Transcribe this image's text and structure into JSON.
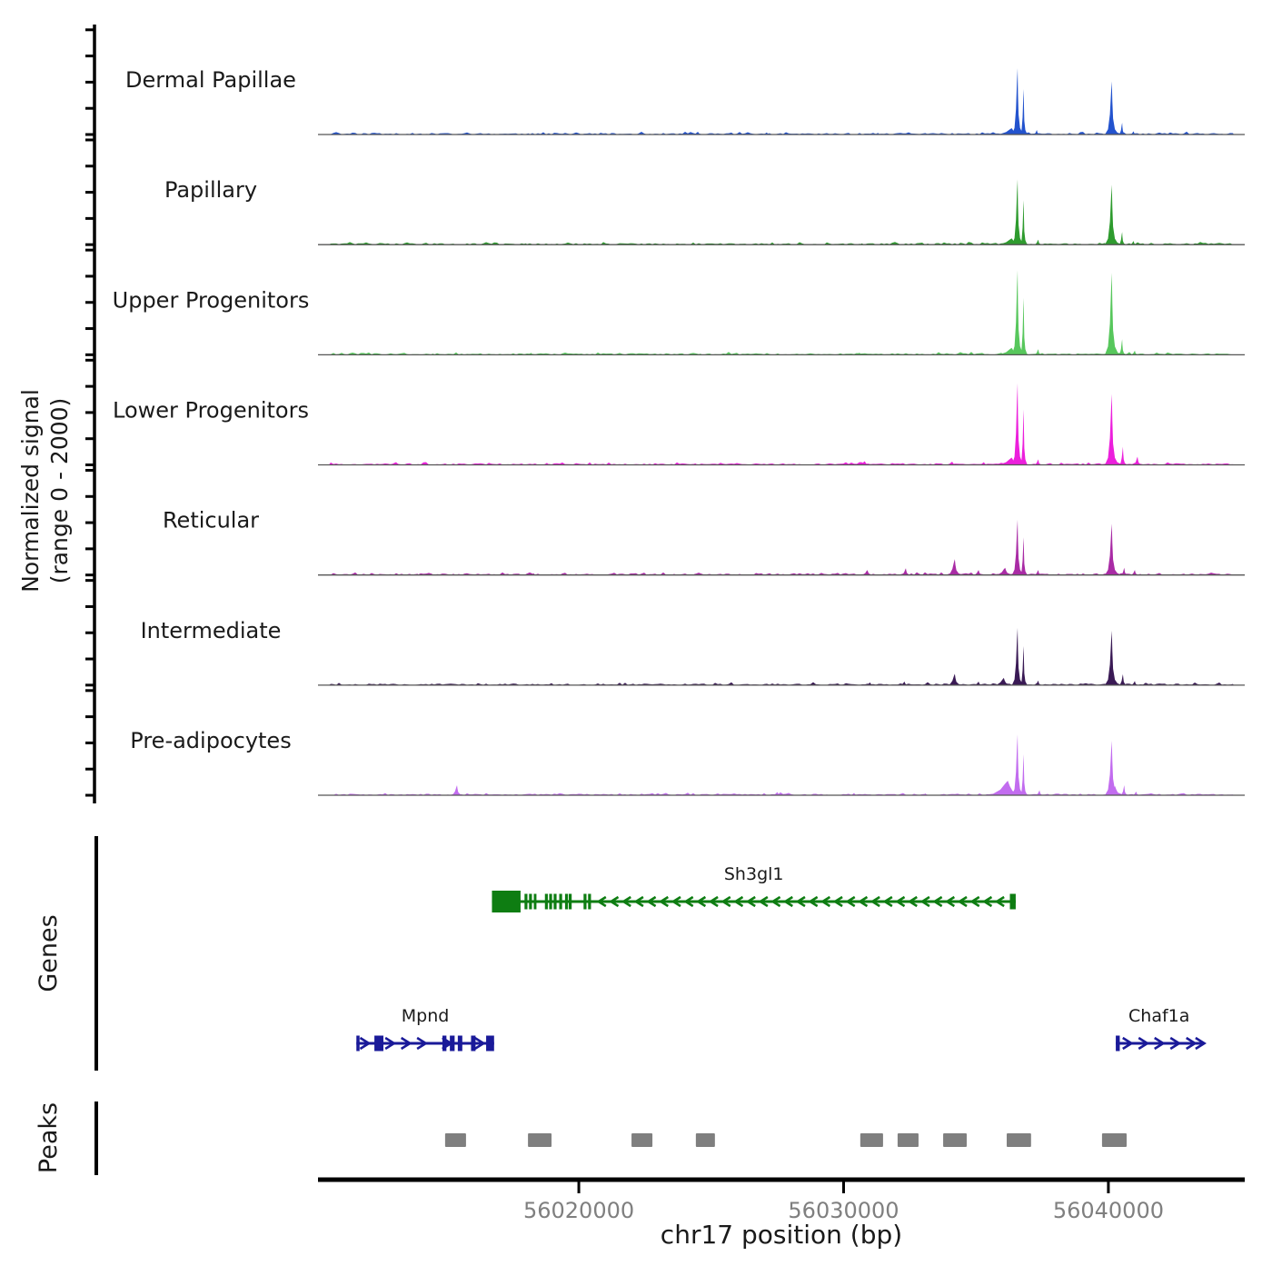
{
  "figure": {
    "ylabel_line1": "Normalized signal",
    "ylabel_line2": "(range 0 - 2000)",
    "genes_section_label": "Genes",
    "peaks_section_label": "Peaks",
    "x_axis_title": "chr17 position (bp)",
    "colors": {
      "background": "#ffffff",
      "axis": "#000000",
      "baseline": "#555555",
      "tick_label_gray": "#7f7f7f",
      "peak_box_gray": "#7f7f7f",
      "text": "#1a1a1a"
    }
  },
  "chart_data": {
    "type": "area",
    "title": "",
    "xlabel": "chr17 position (bp)",
    "ylabel": "Normalized signal (range 0 - 2000)",
    "signal_range": [
      0,
      2000
    ],
    "genome_axis": {
      "start": 56010150,
      "end": 56045150,
      "ticks": [
        {
          "bp": 56020000,
          "label": "56020000"
        },
        {
          "bp": 56030000,
          "label": "56030000"
        },
        {
          "bp": 56040000,
          "label": "56040000"
        }
      ]
    },
    "tracks": [
      {
        "name": "Dermal Papillae",
        "color": "#2353CE",
        "bumps": [
          [
            56018100,
            25,
            700
          ],
          [
            56024500,
            60,
            600
          ],
          [
            56027100,
            45,
            500
          ],
          [
            56031300,
            35,
            500
          ],
          [
            56033100,
            30,
            400
          ],
          [
            56036350,
            140,
            1500
          ],
          [
            56036570,
            1460,
            420
          ],
          [
            56036800,
            1000,
            280
          ],
          [
            56037300,
            100,
            350
          ],
          [
            56040200,
            170,
            1100
          ],
          [
            56040130,
            1170,
            520
          ],
          [
            56040520,
            260,
            300
          ],
          [
            56040950,
            70,
            400
          ]
        ]
      },
      {
        "name": "Papillary",
        "color": "#2E9B2E",
        "bumps": [
          [
            56018000,
            30,
            600
          ],
          [
            56024500,
            25,
            400
          ],
          [
            56030700,
            30,
            500
          ],
          [
            56036350,
            140,
            1500
          ],
          [
            56036570,
            1440,
            420
          ],
          [
            56036800,
            980,
            280
          ],
          [
            56037350,
            110,
            400
          ],
          [
            56040200,
            180,
            1100
          ],
          [
            56040130,
            1320,
            520
          ],
          [
            56040520,
            280,
            300
          ],
          [
            56040950,
            80,
            400
          ]
        ]
      },
      {
        "name": "Upper Progenitors",
        "color": "#57C75C",
        "bumps": [
          [
            56014500,
            25,
            500
          ],
          [
            56018200,
            40,
            600
          ],
          [
            56024600,
            25,
            400
          ],
          [
            56030600,
            45,
            600
          ],
          [
            56036350,
            150,
            1500
          ],
          [
            56036570,
            1860,
            420
          ],
          [
            56036800,
            1250,
            280
          ],
          [
            56037350,
            120,
            400
          ],
          [
            56040200,
            200,
            1100
          ],
          [
            56040130,
            1800,
            520
          ],
          [
            56040520,
            340,
            300
          ],
          [
            56041000,
            90,
            400
          ]
        ]
      },
      {
        "name": "Lower Progenitors",
        "color": "#EC1FDC",
        "bumps": [
          [
            56013100,
            60,
            1000
          ],
          [
            56018800,
            45,
            600
          ],
          [
            56024400,
            35,
            500
          ],
          [
            56030800,
            80,
            700
          ],
          [
            56034100,
            70,
            700
          ],
          [
            56035300,
            60,
            600
          ],
          [
            56036350,
            160,
            1500
          ],
          [
            56036570,
            1800,
            420
          ],
          [
            56036800,
            1220,
            280
          ],
          [
            56037350,
            120,
            400
          ],
          [
            56040200,
            220,
            1200
          ],
          [
            56040130,
            1560,
            520
          ],
          [
            56040550,
            400,
            320
          ],
          [
            56041100,
            180,
            450
          ]
        ]
      },
      {
        "name": "Reticular",
        "color": "#A92BA5",
        "bumps": [
          [
            56013900,
            30,
            500
          ],
          [
            56018300,
            35,
            500
          ],
          [
            56024400,
            30,
            400
          ],
          [
            56030900,
            110,
            600
          ],
          [
            56032350,
            150,
            450
          ],
          [
            56034200,
            350,
            650
          ],
          [
            56035100,
            110,
            500
          ],
          [
            56036100,
            160,
            900
          ],
          [
            56036570,
            1220,
            420
          ],
          [
            56036800,
            830,
            280
          ],
          [
            56037350,
            110,
            400
          ],
          [
            56040200,
            180,
            1000
          ],
          [
            56040130,
            1130,
            520
          ],
          [
            56040600,
            160,
            350
          ],
          [
            56041000,
            110,
            400
          ]
        ]
      },
      {
        "name": "Intermediate",
        "color": "#3A1A55",
        "bumps": [
          [
            56031000,
            60,
            500
          ],
          [
            56032300,
            80,
            450
          ],
          [
            56034200,
            250,
            650
          ],
          [
            56035100,
            80,
            450
          ],
          [
            56036050,
            160,
            900
          ],
          [
            56036570,
            1260,
            420
          ],
          [
            56036800,
            860,
            280
          ],
          [
            56037350,
            100,
            400
          ],
          [
            56040200,
            180,
            1000
          ],
          [
            56040130,
            1200,
            520
          ],
          [
            56040550,
            240,
            350
          ],
          [
            56041000,
            90,
            400
          ]
        ]
      },
      {
        "name": "Pre-adipocytes",
        "color": "#C26CEF",
        "bumps": [
          [
            56015400,
            220,
            550
          ],
          [
            56020000,
            35,
            400
          ],
          [
            56027500,
            70,
            600
          ],
          [
            56030400,
            50,
            500
          ],
          [
            56033100,
            40,
            400
          ],
          [
            56036200,
            320,
            2000
          ],
          [
            56036570,
            1340,
            420
          ],
          [
            56036800,
            900,
            280
          ],
          [
            56037400,
            110,
            400
          ],
          [
            56040250,
            200,
            1200
          ],
          [
            56040130,
            1200,
            520
          ],
          [
            56040600,
            220,
            350
          ],
          [
            56041050,
            80,
            400
          ]
        ]
      }
    ],
    "genes": [
      {
        "name": "Sh3gl1",
        "color": "#0E7D12",
        "strand": "-",
        "start": 56016720,
        "end": 56036500,
        "row": 0,
        "exons": [
          [
            56016720,
            56017800
          ],
          [
            56017950,
            56018060
          ],
          [
            56018120,
            56018230
          ],
          [
            56018300,
            56018400
          ],
          [
            56018720,
            56018830
          ],
          [
            56018880,
            56018990
          ],
          [
            56019050,
            56019160
          ],
          [
            56019260,
            56019370
          ],
          [
            56019480,
            56019590
          ],
          [
            56019620,
            56019730
          ],
          [
            56020180,
            56020290
          ],
          [
            56020350,
            56020460
          ],
          [
            56036280,
            56036500
          ]
        ],
        "big_exon_index": 0,
        "arrow_range": {
          "from": 56020850,
          "to": 56036100,
          "step": 470
        }
      },
      {
        "name": "Mpnd",
        "color": "#1A1A99",
        "strand": "+",
        "start": 56011600,
        "end": 56016800,
        "row": 1,
        "exons": [
          [
            56011600,
            56011720
          ],
          [
            56012280,
            56012620
          ],
          [
            56014850,
            56015000
          ],
          [
            56015130,
            56015310
          ],
          [
            56015430,
            56015600
          ],
          [
            56015930,
            56016100
          ],
          [
            56016500,
            56016800
          ]
        ],
        "arrow_list": [
          56011950,
          56012900,
          56013500,
          56014100,
          56015050,
          56016280
        ]
      },
      {
        "name": "Chaf1a",
        "color": "#1A1A99",
        "strand": "+",
        "start": 56040280,
        "end": 56043550,
        "row": 1,
        "exons": [
          [
            56040280,
            56040430
          ]
        ],
        "arrow_list": [
          56040750,
          56041350,
          56041950,
          56042550,
          56043150,
          56043500
        ]
      }
    ],
    "peak_calls": [
      [
        56014950,
        56015740
      ],
      [
        56018080,
        56018970
      ],
      [
        56021990,
        56022780
      ],
      [
        56024420,
        56025140
      ],
      [
        56030630,
        56031490
      ],
      [
        56032040,
        56032830
      ],
      [
        56033760,
        56034650
      ],
      [
        56036160,
        56037080
      ],
      [
        56039760,
        56040690
      ]
    ]
  }
}
